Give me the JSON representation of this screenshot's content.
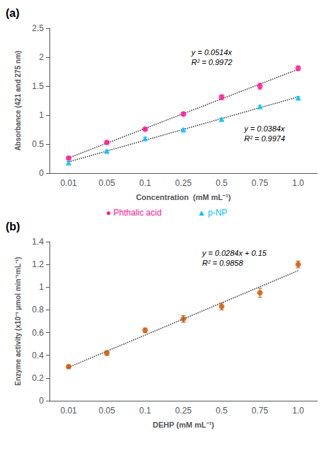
{
  "chart_data": [
    {
      "type": "scatter",
      "title": "(a)",
      "xlabel": "Concentration  (mM mL⁻¹)",
      "ylabel": "Absorbance (421 and 275 nm)",
      "categories": [
        "0.01",
        "0.05",
        "0.1",
        "0.25",
        "0.5",
        "0.75",
        "1.0"
      ],
      "ylim": [
        0,
        2.5
      ],
      "yticks": [
        0,
        0.5,
        1,
        1.5,
        2,
        2.5
      ],
      "grid": false,
      "legend": "bottom",
      "annotations": [
        "y = 0.0514x\nR² = 0.9972",
        "y = 0.0384x\nR² = 0.9974"
      ],
      "series": [
        {
          "type": "line",
          "line_style": "dotted",
          "color": "#333333",
          "values": [
            0.262143,
            0.517143,
            0.772143,
            1.027143,
            1.282143,
            1.537143,
            1.792143
          ]
        },
        {
          "type": "line",
          "line_style": "dotted",
          "color": "#333333",
          "values": [
            0.195357,
            0.382143,
            0.568929,
            0.755714,
            0.9425,
            1.129286,
            1.316071
          ]
        },
        {
          "name": "● Phthalic acid",
          "color": "#FF1493",
          "marker": "circle",
          "values": [
            0.26,
            0.53,
            0.76,
            1.02,
            1.31,
            1.5,
            1.81
          ],
          "errors": [
            0.02,
            0.02,
            0.02,
            0.03,
            0.04,
            0.05,
            0.04
          ]
        },
        {
          "name": "▲ p-NP",
          "color": "#00BFFF",
          "marker": "triangle",
          "values": [
            0.18,
            0.38,
            0.6,
            0.75,
            0.93,
            1.15,
            1.3
          ],
          "errors": [
            0.02,
            0.02,
            0.02,
            0.02,
            0.02,
            0.02,
            0.02
          ]
        }
      ]
    },
    {
      "type": "scatter",
      "title": "(b)",
      "xlabel": "DEHP (mM mL⁻¹)",
      "ylabel": "Enzyme activity (x10⁻³ μmol min⁻¹mL⁻¹)",
      "categories": [
        "0.01",
        "0.05",
        "0.1",
        "0.25",
        "0.5",
        "0.75",
        "1.0"
      ],
      "ylim": [
        0,
        1.4
      ],
      "yticks": [
        0,
        0.2,
        0.4,
        0.6,
        0.8,
        1,
        1.2,
        1.4
      ],
      "grid": false,
      "annotations": [
        "y = 0.0284x + 0.15\nR² = 0.9858"
      ],
      "series": [
        {
          "type": "line",
          "line_style": "dotted",
          "color": "#333333",
          "values": [
            0.294643,
            0.436429,
            0.578214,
            0.72,
            0.861786,
            1.003571,
            1.145357
          ]
        },
        {
          "color": "#CC5500",
          "marker": "circle",
          "values": [
            0.3,
            0.42,
            0.62,
            0.72,
            0.83,
            0.95,
            1.2
          ],
          "errors": [
            0.01,
            0.02,
            0.02,
            0.03,
            0.03,
            0.04,
            0.03
          ]
        }
      ]
    }
  ]
}
